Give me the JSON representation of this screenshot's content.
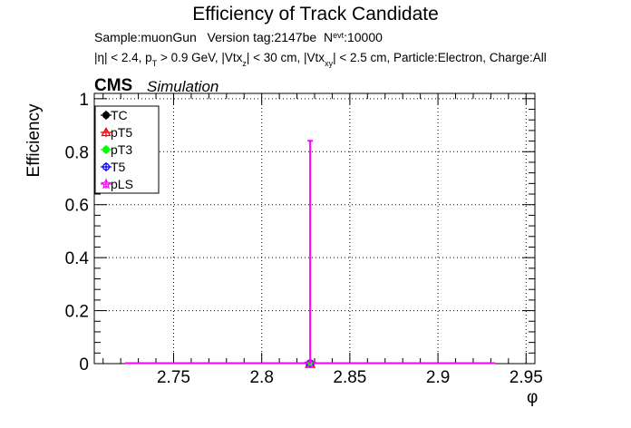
{
  "chart_data": {
    "type": "scatter",
    "title": "Efficiency of Track Candidate",
    "info_line1": {
      "sample": "Sample:muonGun",
      "version": "Version tag:2147be",
      "nevt_symbol": "N",
      "nevt_sub": "evt",
      "nevt_value": ":10000"
    },
    "info_line2": {
      "p1": "|η| < 2.4, p",
      "p1_sub": "T",
      "p2": " > 0.9 GeV, |Vtx",
      "p2_sub": "z",
      "p3": "| < 30 cm, |Vtx",
      "p3_sub": "xy",
      "p4": "| < 2.5 cm, Particle:Electron, Charge:All"
    },
    "cms_label": "CMS",
    "simulation_label": "Simulation",
    "xlabel": "φ",
    "ylabel": "Efficiency",
    "xlim": [
      2.705,
      2.955
    ],
    "ylim": [
      0,
      1.02
    ],
    "x_ticks": [
      {
        "value": 2.75,
        "label": "2.75"
      },
      {
        "value": 2.8,
        "label": "2.8"
      },
      {
        "value": 2.85,
        "label": "2.85"
      },
      {
        "value": 2.9,
        "label": "2.9"
      },
      {
        "value": 2.95,
        "label": "2.95"
      }
    ],
    "y_ticks": [
      {
        "value": 0,
        "label": "0"
      },
      {
        "value": 0.2,
        "label": "0.2"
      },
      {
        "value": 0.4,
        "label": "0.4"
      },
      {
        "value": 0.6,
        "label": "0.6"
      },
      {
        "value": 0.8,
        "label": "0.8"
      },
      {
        "value": 1,
        "label": "1"
      }
    ],
    "grid": true,
    "legend_position": "top-left",
    "x_range_line": [
      2.7225,
      2.9325
    ],
    "series": [
      {
        "name": "TC",
        "color": "#000000",
        "marker": "filled-circle",
        "x": 2.8275,
        "y": 0,
        "y_err_high": 0
      },
      {
        "name": "pT5",
        "color": "#ff0000",
        "marker": "open-triangle",
        "x": 2.8275,
        "y": 0,
        "y_err_high": 0
      },
      {
        "name": "pT3",
        "color": "#00ff00",
        "marker": "filled-circle",
        "x": 2.8275,
        "y": 0,
        "y_err_high": 0
      },
      {
        "name": "T5",
        "color": "#0000ff",
        "marker": "open-circle",
        "x": 2.8275,
        "y": 0,
        "y_err_high": 0
      },
      {
        "name": "pLS",
        "color": "#ff00ff",
        "marker": "open-star",
        "x": 2.8275,
        "y": 0,
        "y_err_high": 0.841
      }
    ]
  }
}
